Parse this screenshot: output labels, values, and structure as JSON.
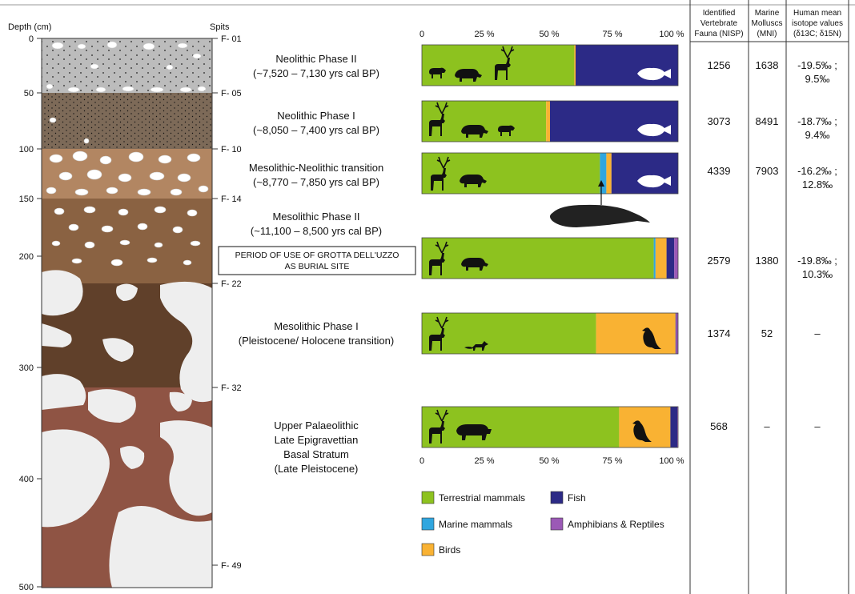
{
  "depth_axis": {
    "label": "Depth (cm)",
    "ticks": [
      "0",
      "50",
      "100",
      "150",
      "200",
      "300",
      "400",
      "500"
    ]
  },
  "spits": {
    "label": "Spits",
    "marks": [
      "F- 01",
      "F- 05",
      "F- 10",
      "F- 14",
      "F- 22",
      "F- 32",
      "F- 49"
    ]
  },
  "phases": [
    {
      "line1": "Neolithic Phase II",
      "line2": "(~7,520 – 7,130 yrs cal BP)"
    },
    {
      "line1": "Neolithic Phase I",
      "line2": "(~8,050 – 7,400 yrs cal BP)"
    },
    {
      "line1": "Mesolithic-Neolithic transition",
      "line2": "(~8,770 – 7,850 yrs cal BP)"
    },
    {
      "line1": "Mesolithic Phase II",
      "line2": "(~11,100 – 8,500 yrs cal BP)"
    },
    {
      "line1": "Mesolithic Phase I",
      "line2": "(Pleistocene/ Holocene transition)"
    },
    {
      "line1": "Upper Palaeolithic",
      "line2": "Late Epigravettian",
      "line3": "Basal Stratum",
      "line4": "(Late Pleistocene)"
    }
  ],
  "burial_box": {
    "line1": "PERIOD OF USE OF GROTTA DELL'UZZO",
    "line2": "AS BURIAL SITE"
  },
  "pct_ticks": [
    "0",
    "25 %",
    "50 %",
    "75 %",
    "100 %"
  ],
  "table": {
    "headers": [
      {
        "l1": "Identified",
        "l2": "Vertebrate",
        "l3": "Fauna (NISP)"
      },
      {
        "l1": "Marine",
        "l2": "Molluscs",
        "l3": "(MNI)"
      },
      {
        "l1": "Human mean",
        "l2": "isotope values",
        "l3": "(δ13C; δ15N)"
      }
    ],
    "rows": [
      {
        "nisp": "1256",
        "mni": "1638",
        "iso1": "-19.5‰ ;",
        "iso2": "9.5‰"
      },
      {
        "nisp": "3073",
        "mni": "8491",
        "iso1": "-18.7‰ ;",
        "iso2": "9.4‰"
      },
      {
        "nisp": "4339",
        "mni": "7903",
        "iso1": "-16.2‰ ;",
        "iso2": "12.8‰"
      },
      {
        "nisp": "2579",
        "mni": "1380",
        "iso1": "-19.8‰ ;",
        "iso2": "10.3‰"
      },
      {
        "nisp": "1374",
        "mni": "52",
        "iso1": "–",
        "iso2": ""
      },
      {
        "nisp": "568",
        "mni": "–",
        "iso1": "–",
        "iso2": ""
      }
    ]
  },
  "legend": [
    {
      "label": "Terrestrial mammals",
      "color": "#8dc21f"
    },
    {
      "label": "Fish",
      "color": "#2c2a86"
    },
    {
      "label": "Marine mammals",
      "color": "#30a6df"
    },
    {
      "label": "Amphibians & Reptiles",
      "color": "#9b59b6"
    },
    {
      "label": "Birds",
      "color": "#f9b233"
    }
  ],
  "chart_data": {
    "type": "bar",
    "orientation": "horizontal",
    "stacked": true,
    "unit": "%",
    "xlim": [
      0,
      100
    ],
    "categories": [
      "Neolithic Phase II",
      "Neolithic Phase I",
      "Mesolithic-Neolithic transition",
      "Mesolithic Phase II",
      "Mesolithic Phase I",
      "Upper Palaeolithic"
    ],
    "series": [
      {
        "name": "Terrestrial mammals",
        "color": "#8dc21f",
        "values": [
          59.5,
          48.5,
          69.5,
          90.5,
          68.0,
          77.0
        ]
      },
      {
        "name": "Marine mammals",
        "color": "#30a6df",
        "values": [
          0,
          0,
          2.5,
          0.7,
          0,
          0
        ]
      },
      {
        "name": "Birds",
        "color": "#f9b233",
        "values": [
          0.5,
          1.5,
          2.0,
          4.3,
          31.0,
          20.0
        ]
      },
      {
        "name": "Fish",
        "color": "#2c2a86",
        "values": [
          40.0,
          50.0,
          26.0,
          3.0,
          0.2,
          2.7
        ]
      },
      {
        "name": "Amphibians & Reptiles",
        "color": "#9b59b6",
        "values": [
          0,
          0,
          0,
          1.5,
          0.8,
          0.3
        ]
      }
    ]
  },
  "icons": [
    "sheep-icon",
    "boar-icon",
    "deer-icon",
    "fish-icon",
    "fox-icon",
    "bird-icon",
    "aurochs-icon",
    "whale-icon"
  ]
}
